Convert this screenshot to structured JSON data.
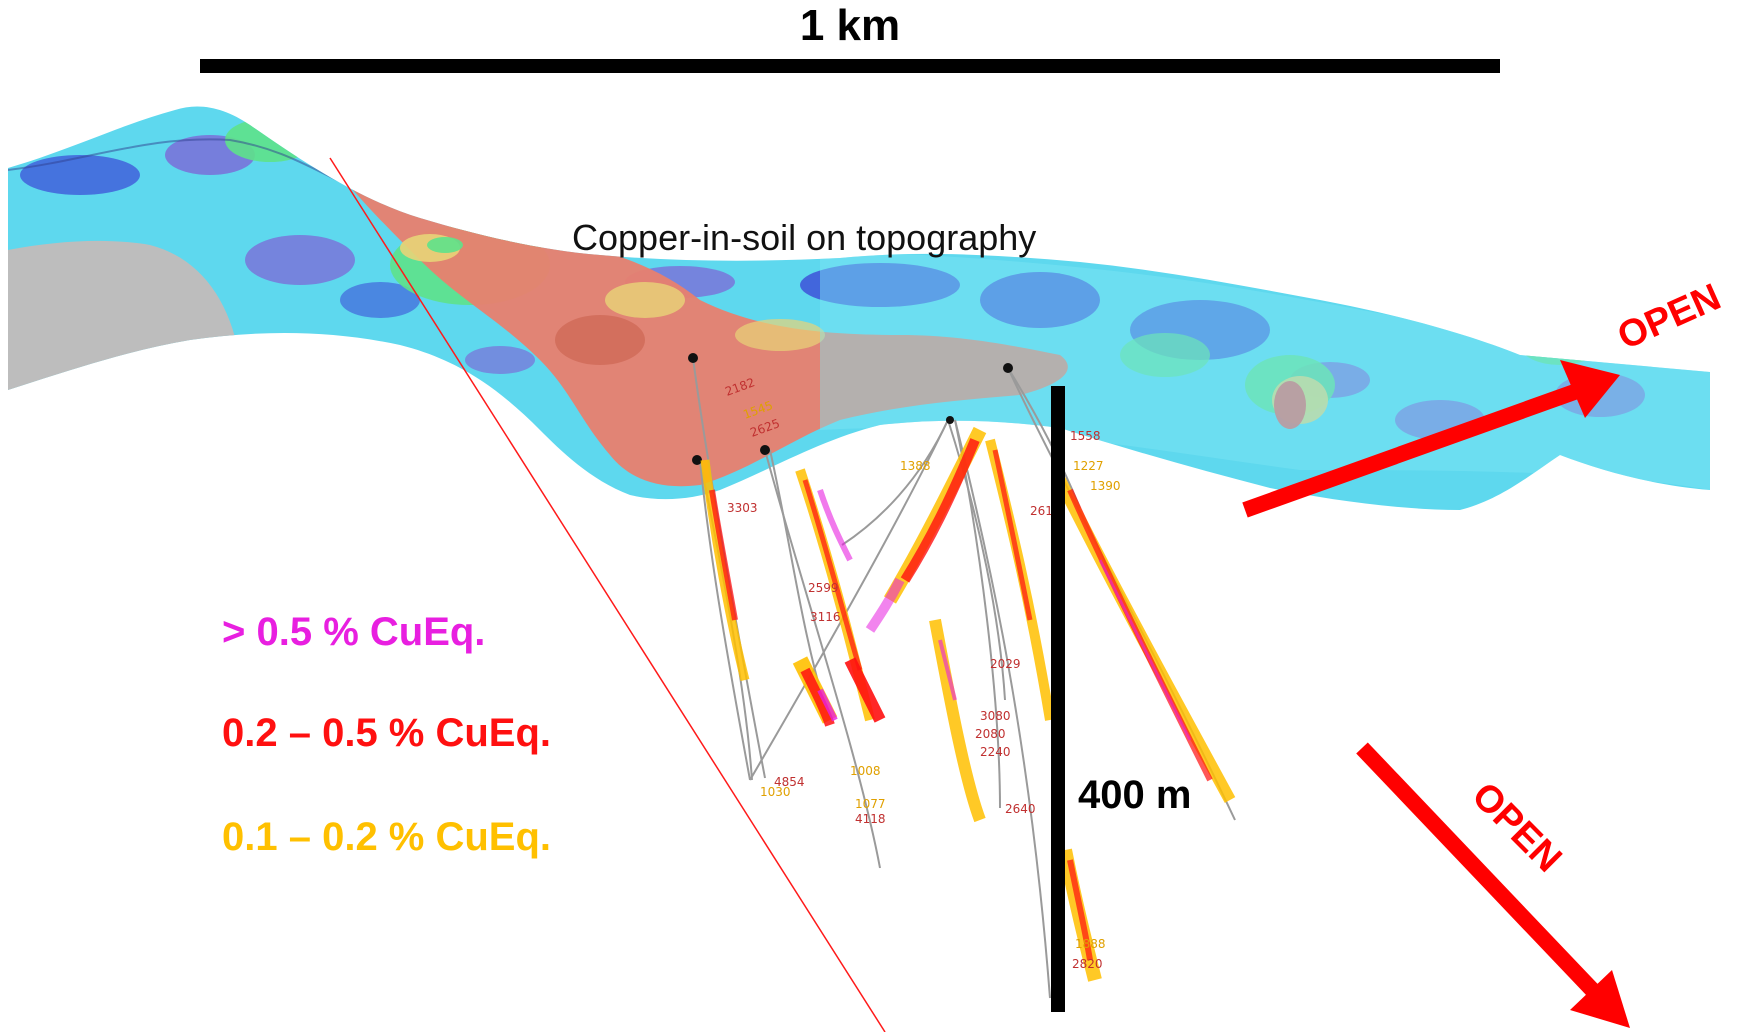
{
  "scale_bar": {
    "label": "1 km"
  },
  "depth_bar": {
    "label": "400 m"
  },
  "surface_label": "Copper-in-soil on topography",
  "legend": [
    {
      "text": "> 0.5 % CuEq.",
      "color": "#e81fe0"
    },
    {
      "text": "0.2 – 0.5 % CuEq.",
      "color": "#ff1010"
    },
    {
      "text": "0.1 – 0.2 % CuEq.",
      "color": "#ffc000"
    }
  ],
  "open_arrows": [
    {
      "label": "OPEN",
      "direction": "east",
      "color": "#ff0000"
    },
    {
      "label": "OPEN",
      "direction": "down-dip",
      "color": "#ff0000"
    }
  ],
  "colors": {
    "topo_cyan": "#5ed8ee",
    "topo_blue": "#3d52d8",
    "topo_purple": "#7a6fd8",
    "topo_green": "#5ee28a",
    "topo_yellow": "#e8d478",
    "topo_red": "#e8806e",
    "topo_grey": "#bdbdbd",
    "drill_trace": "#9a9a9a"
  },
  "drill_labels": {
    "a": "2182",
    "b": "1545",
    "c": "2625",
    "d": "3303",
    "e": "2599",
    "f": "3116",
    "g": "1008",
    "h": "4854",
    "i": "1077",
    "j": "4118",
    "k": "1388",
    "l": "2029",
    "m": "3080",
    "n": "2080",
    "o": "2240",
    "p": "2640",
    "q": "1558",
    "r": "1227",
    "s": "1390",
    "t": "2616",
    "u": "1888",
    "v": "2820",
    "w": "1030"
  }
}
